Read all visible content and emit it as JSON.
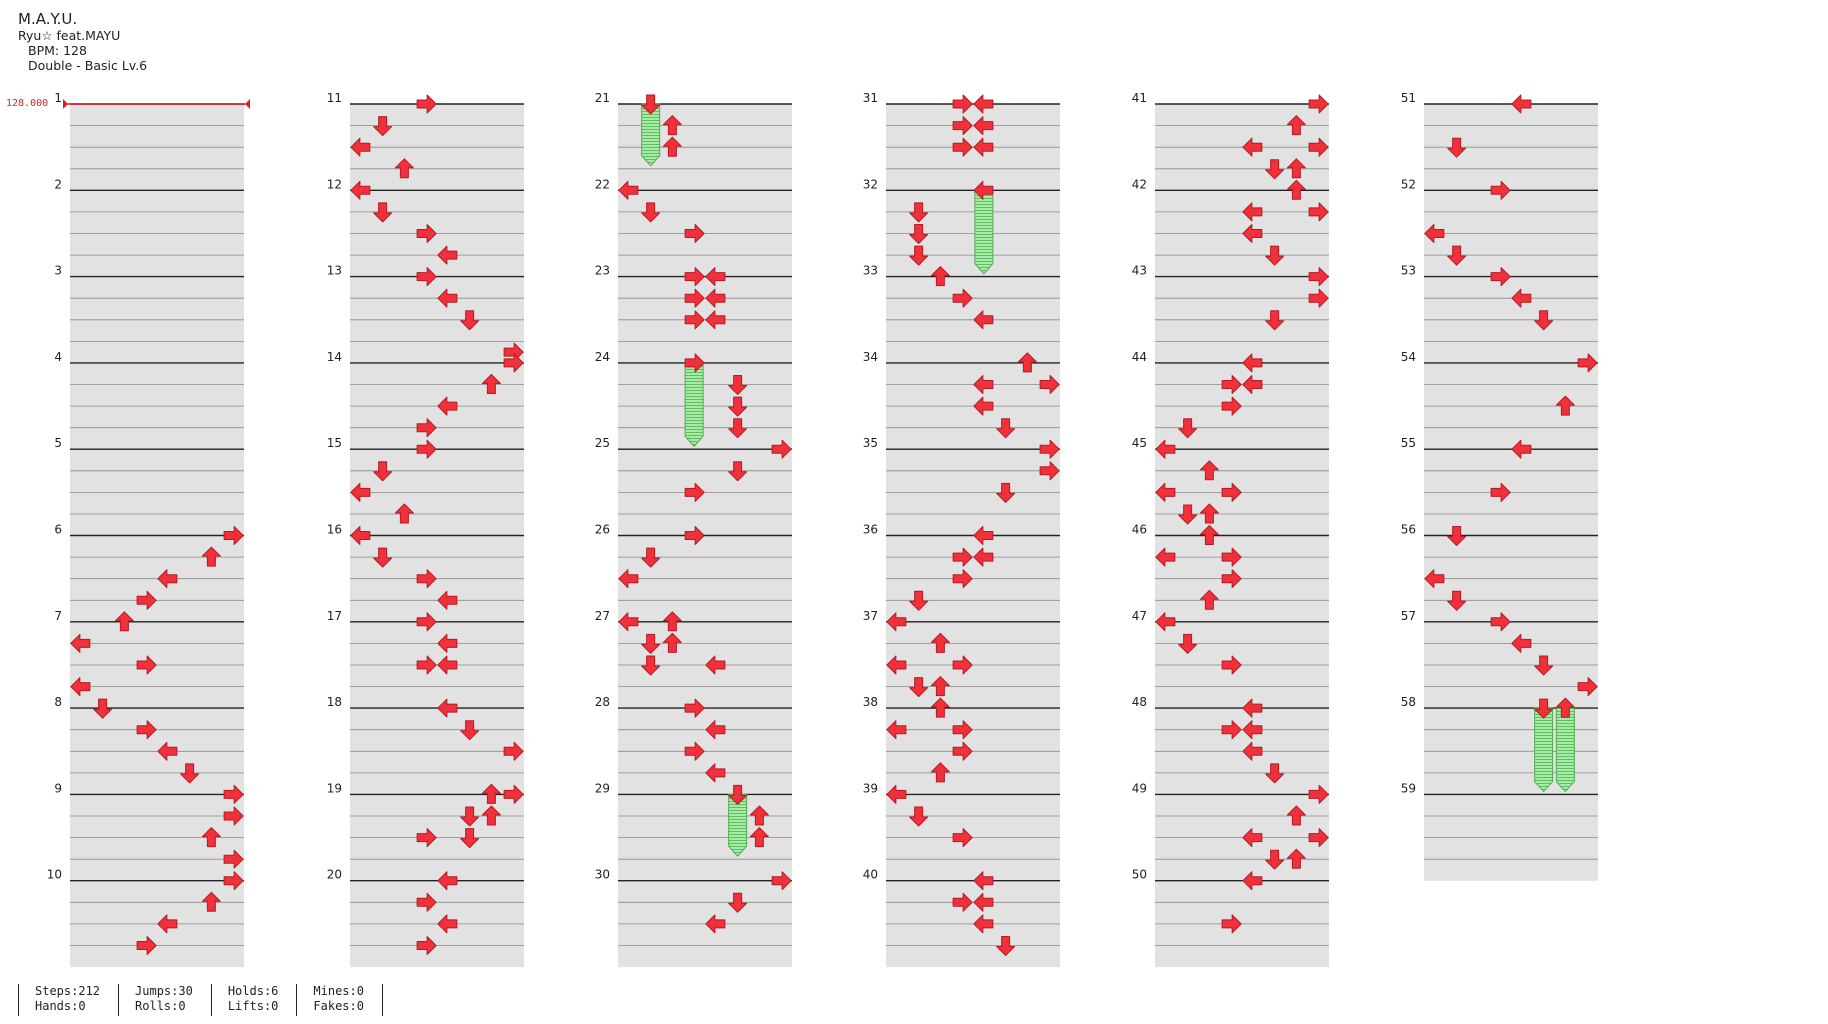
{
  "header": {
    "title": "M.A.Y.U.",
    "artist": "Ryu☆ feat.MAYU",
    "bpm": "BPM: 128",
    "difficulty": "Double - Basic  Lv.6"
  },
  "bpm_marker": "128.000",
  "colors": {
    "arrow": "#f2303a",
    "arrow_stroke": "#b01d26",
    "hold": "#8fe08f",
    "band": "#e2e2e2",
    "beat_line": "#222222",
    "bpm_line": "#e02020"
  },
  "stats": [
    [
      "Steps:212",
      "Hands:0"
    ],
    [
      "Jumps:30",
      "Rolls:0"
    ],
    [
      "Holds:6",
      "Lifts:0"
    ],
    [
      "Mines:0",
      "Fakes:0"
    ]
  ],
  "measures": [
    {
      "n": "1",
      "notes": []
    },
    {
      "n": "2",
      "notes": []
    },
    {
      "n": "3",
      "notes": []
    },
    {
      "n": "4",
      "notes": []
    },
    {
      "n": "5",
      "notes": []
    },
    {
      "n": "6",
      "notes": [
        [
          0,
          7,
          "R"
        ],
        [
          1,
          6,
          "U"
        ],
        [
          2,
          4,
          "L"
        ],
        [
          3,
          3,
          "R"
        ]
      ]
    },
    {
      "n": "7",
      "notes": [
        [
          0,
          2,
          "U"
        ],
        [
          1,
          0,
          "L"
        ],
        [
          2,
          3,
          "R"
        ],
        [
          3,
          0,
          "L"
        ]
      ]
    },
    {
      "n": "8",
      "notes": [
        [
          0,
          1,
          "D"
        ],
        [
          1,
          3,
          "R"
        ],
        [
          2,
          4,
          "L"
        ],
        [
          3,
          5,
          "D"
        ]
      ]
    },
    {
      "n": "9",
      "notes": [
        [
          0,
          7,
          "R"
        ],
        [
          1,
          7,
          "R"
        ],
        [
          2,
          6,
          "U"
        ],
        [
          3,
          7,
          "R"
        ]
      ]
    },
    {
      "n": "10",
      "notes": [
        [
          0,
          7,
          "R"
        ],
        [
          1,
          6,
          "U"
        ],
        [
          2,
          4,
          "L"
        ],
        [
          3,
          3,
          "R"
        ]
      ]
    },
    {
      "n": "11",
      "notes": [
        [
          0,
          3,
          "R"
        ],
        [
          1,
          1,
          "D"
        ],
        [
          2,
          0,
          "L"
        ],
        [
          3,
          2,
          "U"
        ]
      ]
    },
    {
      "n": "12",
      "notes": [
        [
          0,
          0,
          "L"
        ],
        [
          1,
          1,
          "D"
        ],
        [
          2,
          3,
          "R"
        ],
        [
          3,
          4,
          "L"
        ]
      ]
    },
    {
      "n": "13",
      "notes": [
        [
          0,
          3,
          "R"
        ],
        [
          1,
          4,
          "L"
        ],
        [
          2,
          5,
          "D"
        ]
      ]
    },
    {
      "n": "14",
      "notes": [
        [
          -0.5,
          7,
          "R"
        ],
        [
          0,
          7,
          "R"
        ],
        [
          1,
          6,
          "U"
        ],
        [
          2,
          4,
          "L"
        ],
        [
          3,
          3,
          "R"
        ]
      ]
    },
    {
      "n": "15",
      "notes": [
        [
          0,
          3,
          "R"
        ],
        [
          1,
          1,
          "D"
        ],
        [
          2,
          0,
          "L"
        ],
        [
          3,
          2,
          "U"
        ]
      ]
    },
    {
      "n": "16",
      "notes": [
        [
          0,
          0,
          "L"
        ],
        [
          1,
          1,
          "D"
        ],
        [
          2,
          3,
          "R"
        ],
        [
          3,
          4,
          "L"
        ]
      ]
    },
    {
      "n": "17",
      "notes": [
        [
          0,
          3,
          "R"
        ],
        [
          1,
          4,
          "L"
        ],
        [
          2,
          3,
          "R"
        ],
        [
          2,
          4,
          "L"
        ]
      ]
    },
    {
      "n": "18",
      "notes": [
        [
          0,
          4,
          "L"
        ],
        [
          1,
          5,
          "D"
        ],
        [
          2,
          7,
          "R"
        ]
      ]
    },
    {
      "n": "19",
      "notes": [
        [
          0,
          6,
          "U"
        ],
        [
          0,
          7,
          "R"
        ],
        [
          1,
          5,
          "D"
        ],
        [
          1,
          6,
          "U"
        ],
        [
          2,
          3,
          "R"
        ],
        [
          2,
          5,
          "D"
        ]
      ]
    },
    {
      "n": "20",
      "notes": [
        [
          0,
          4,
          "L"
        ],
        [
          1,
          3,
          "R"
        ],
        [
          2,
          4,
          "L"
        ],
        [
          3,
          3,
          "R"
        ]
      ]
    },
    {
      "n": "21",
      "notes": [
        [
          0,
          1,
          "D"
        ],
        [
          1,
          2,
          "U"
        ],
        [
          2,
          2,
          "U"
        ]
      ],
      "holds": [
        [
          0,
          1,
          2.4
        ]
      ]
    },
    {
      "n": "22",
      "notes": [
        [
          0,
          0,
          "L"
        ],
        [
          1,
          1,
          "D"
        ],
        [
          2,
          3,
          "R"
        ]
      ]
    },
    {
      "n": "23",
      "notes": [
        [
          0,
          3,
          "R"
        ],
        [
          0,
          4,
          "L"
        ],
        [
          1,
          3,
          "R"
        ],
        [
          1,
          4,
          "L"
        ],
        [
          2,
          3,
          "R"
        ],
        [
          2,
          4,
          "L"
        ]
      ]
    },
    {
      "n": "24",
      "notes": [
        [
          0,
          3,
          "R"
        ],
        [
          1,
          5,
          "D"
        ],
        [
          2,
          5,
          "D"
        ],
        [
          3,
          5,
          "D"
        ]
      ],
      "holds": [
        [
          0,
          3,
          3.4
        ]
      ]
    },
    {
      "n": "25",
      "notes": [
        [
          0,
          7,
          "R"
        ],
        [
          1,
          5,
          "D"
        ],
        [
          2,
          3,
          "R"
        ]
      ]
    },
    {
      "n": "26",
      "notes": [
        [
          0,
          3,
          "R"
        ],
        [
          1,
          1,
          "D"
        ],
        [
          2,
          0,
          "L"
        ]
      ]
    },
    {
      "n": "27",
      "notes": [
        [
          0,
          0,
          "L"
        ],
        [
          0,
          2,
          "U"
        ],
        [
          1,
          1,
          "D"
        ],
        [
          1,
          2,
          "U"
        ],
        [
          2,
          1,
          "D"
        ],
        [
          2,
          4,
          "L"
        ]
      ]
    },
    {
      "n": "28",
      "notes": [
        [
          0,
          3,
          "R"
        ],
        [
          1,
          4,
          "L"
        ],
        [
          2,
          3,
          "R"
        ],
        [
          3,
          4,
          "L"
        ]
      ]
    },
    {
      "n": "29",
      "notes": [
        [
          0,
          5,
          "D"
        ],
        [
          1,
          6,
          "U"
        ],
        [
          2,
          6,
          "U"
        ]
      ],
      "holds": [
        [
          0,
          5,
          2.4
        ]
      ]
    },
    {
      "n": "30",
      "notes": [
        [
          0,
          7,
          "R"
        ],
        [
          1,
          5,
          "D"
        ],
        [
          2,
          4,
          "L"
        ]
      ]
    },
    {
      "n": "31",
      "notes": [
        [
          0,
          3,
          "R"
        ],
        [
          0,
          4,
          "L"
        ],
        [
          1,
          3,
          "R"
        ],
        [
          1,
          4,
          "L"
        ],
        [
          2,
          3,
          "R"
        ],
        [
          2,
          4,
          "L"
        ]
      ]
    },
    {
      "n": "32",
      "notes": [
        [
          0,
          4,
          "L"
        ],
        [
          1,
          1,
          "D"
        ],
        [
          2,
          1,
          "D"
        ],
        [
          3,
          1,
          "D"
        ]
      ],
      "holds": [
        [
          0,
          4,
          3.4
        ]
      ]
    },
    {
      "n": "33",
      "notes": [
        [
          0,
          2,
          "U"
        ],
        [
          1,
          3,
          "R"
        ],
        [
          2,
          4,
          "L"
        ]
      ]
    },
    {
      "n": "34",
      "notes": [
        [
          0,
          6,
          "U"
        ],
        [
          1,
          4,
          "L"
        ],
        [
          1,
          7,
          "R"
        ],
        [
          2,
          4,
          "L"
        ],
        [
          3,
          5,
          "D"
        ]
      ]
    },
    {
      "n": "35",
      "notes": [
        [
          0,
          7,
          "R"
        ],
        [
          1,
          7,
          "R"
        ],
        [
          2,
          5,
          "D"
        ]
      ]
    },
    {
      "n": "36",
      "notes": [
        [
          0,
          4,
          "L"
        ],
        [
          1,
          3,
          "R"
        ],
        [
          1,
          4,
          "L"
        ],
        [
          2,
          3,
          "R"
        ],
        [
          3,
          1,
          "D"
        ]
      ]
    },
    {
      "n": "37",
      "notes": [
        [
          0,
          0,
          "L"
        ],
        [
          1,
          2,
          "U"
        ],
        [
          2,
          0,
          "L"
        ],
        [
          2,
          3,
          "R"
        ],
        [
          3,
          1,
          "D"
        ],
        [
          3,
          2,
          "U"
        ]
      ]
    },
    {
      "n": "38",
      "notes": [
        [
          0,
          2,
          "U"
        ],
        [
          1,
          0,
          "L"
        ],
        [
          1,
          3,
          "R"
        ],
        [
          2,
          3,
          "R"
        ],
        [
          3,
          2,
          "U"
        ]
      ]
    },
    {
      "n": "39",
      "notes": [
        [
          0,
          0,
          "L"
        ],
        [
          1,
          1,
          "D"
        ],
        [
          2,
          3,
          "R"
        ]
      ]
    },
    {
      "n": "40",
      "notes": [
        [
          0,
          4,
          "L"
        ],
        [
          1,
          3,
          "R"
        ],
        [
          1,
          4,
          "L"
        ],
        [
          2,
          4,
          "L"
        ],
        [
          3,
          5,
          "D"
        ]
      ]
    },
    {
      "n": "41",
      "notes": [
        [
          0,
          7,
          "R"
        ],
        [
          1,
          6,
          "U"
        ],
        [
          2,
          4,
          "L"
        ],
        [
          2,
          7,
          "R"
        ],
        [
          3,
          5,
          "D"
        ],
        [
          3,
          6,
          "U"
        ]
      ]
    },
    {
      "n": "42",
      "notes": [
        [
          0,
          6,
          "U"
        ],
        [
          1,
          4,
          "L"
        ],
        [
          1,
          7,
          "R"
        ],
        [
          2,
          4,
          "L"
        ],
        [
          3,
          5,
          "D"
        ]
      ]
    },
    {
      "n": "43",
      "notes": [
        [
          0,
          7,
          "R"
        ],
        [
          1,
          7,
          "R"
        ],
        [
          2,
          5,
          "D"
        ]
      ]
    },
    {
      "n": "44",
      "notes": [
        [
          0,
          4,
          "L"
        ],
        [
          1,
          3,
          "R"
        ],
        [
          1,
          4,
          "L"
        ],
        [
          2,
          3,
          "R"
        ],
        [
          3,
          1,
          "D"
        ]
      ]
    },
    {
      "n": "45",
      "notes": [
        [
          0,
          0,
          "L"
        ],
        [
          1,
          2,
          "U"
        ],
        [
          2,
          0,
          "L"
        ],
        [
          2,
          3,
          "R"
        ],
        [
          3,
          1,
          "D"
        ],
        [
          3,
          2,
          "U"
        ]
      ]
    },
    {
      "n": "46",
      "notes": [
        [
          0,
          2,
          "U"
        ],
        [
          1,
          0,
          "L"
        ],
        [
          1,
          3,
          "R"
        ],
        [
          2,
          3,
          "R"
        ],
        [
          3,
          2,
          "U"
        ]
      ]
    },
    {
      "n": "47",
      "notes": [
        [
          0,
          0,
          "L"
        ],
        [
          1,
          1,
          "D"
        ],
        [
          2,
          3,
          "R"
        ]
      ]
    },
    {
      "n": "48",
      "notes": [
        [
          0,
          4,
          "L"
        ],
        [
          1,
          3,
          "R"
        ],
        [
          1,
          4,
          "L"
        ],
        [
          2,
          4,
          "L"
        ],
        [
          3,
          5,
          "D"
        ]
      ]
    },
    {
      "n": "49",
      "notes": [
        [
          0,
          7,
          "R"
        ],
        [
          1,
          6,
          "U"
        ],
        [
          2,
          4,
          "L"
        ],
        [
          2,
          7,
          "R"
        ],
        [
          3,
          5,
          "D"
        ],
        [
          3,
          6,
          "U"
        ]
      ]
    },
    {
      "n": "50",
      "notes": [
        [
          0,
          4,
          "L"
        ],
        [
          2,
          3,
          "R"
        ]
      ]
    },
    {
      "n": "51",
      "notes": [
        [
          0,
          4,
          "L"
        ],
        [
          2,
          1,
          "D"
        ]
      ]
    },
    {
      "n": "52",
      "notes": [
        [
          0,
          3,
          "R"
        ],
        [
          2,
          0,
          "L"
        ],
        [
          3,
          1,
          "D"
        ]
      ]
    },
    {
      "n": "53",
      "notes": [
        [
          0,
          3,
          "R"
        ],
        [
          1,
          4,
          "L"
        ],
        [
          2,
          5,
          "D"
        ]
      ]
    },
    {
      "n": "54",
      "notes": [
        [
          0,
          7,
          "R"
        ],
        [
          2,
          6,
          "U"
        ]
      ]
    },
    {
      "n": "55",
      "notes": [
        [
          0,
          4,
          "L"
        ],
        [
          2,
          3,
          "R"
        ]
      ]
    },
    {
      "n": "56",
      "notes": [
        [
          0,
          1,
          "D"
        ],
        [
          2,
          0,
          "L"
        ],
        [
          3,
          1,
          "D"
        ]
      ]
    },
    {
      "n": "57",
      "notes": [
        [
          0,
          3,
          "R"
        ],
        [
          1,
          4,
          "L"
        ],
        [
          2,
          5,
          "D"
        ],
        [
          3,
          7,
          "R"
        ]
      ]
    },
    {
      "n": "58",
      "notes": [
        [
          0,
          5,
          "D"
        ],
        [
          0,
          6,
          "U"
        ]
      ],
      "holds": [
        [
          0,
          5,
          3.4
        ],
        [
          0,
          6,
          3.4
        ]
      ]
    },
    {
      "n": "59",
      "notes": []
    }
  ]
}
